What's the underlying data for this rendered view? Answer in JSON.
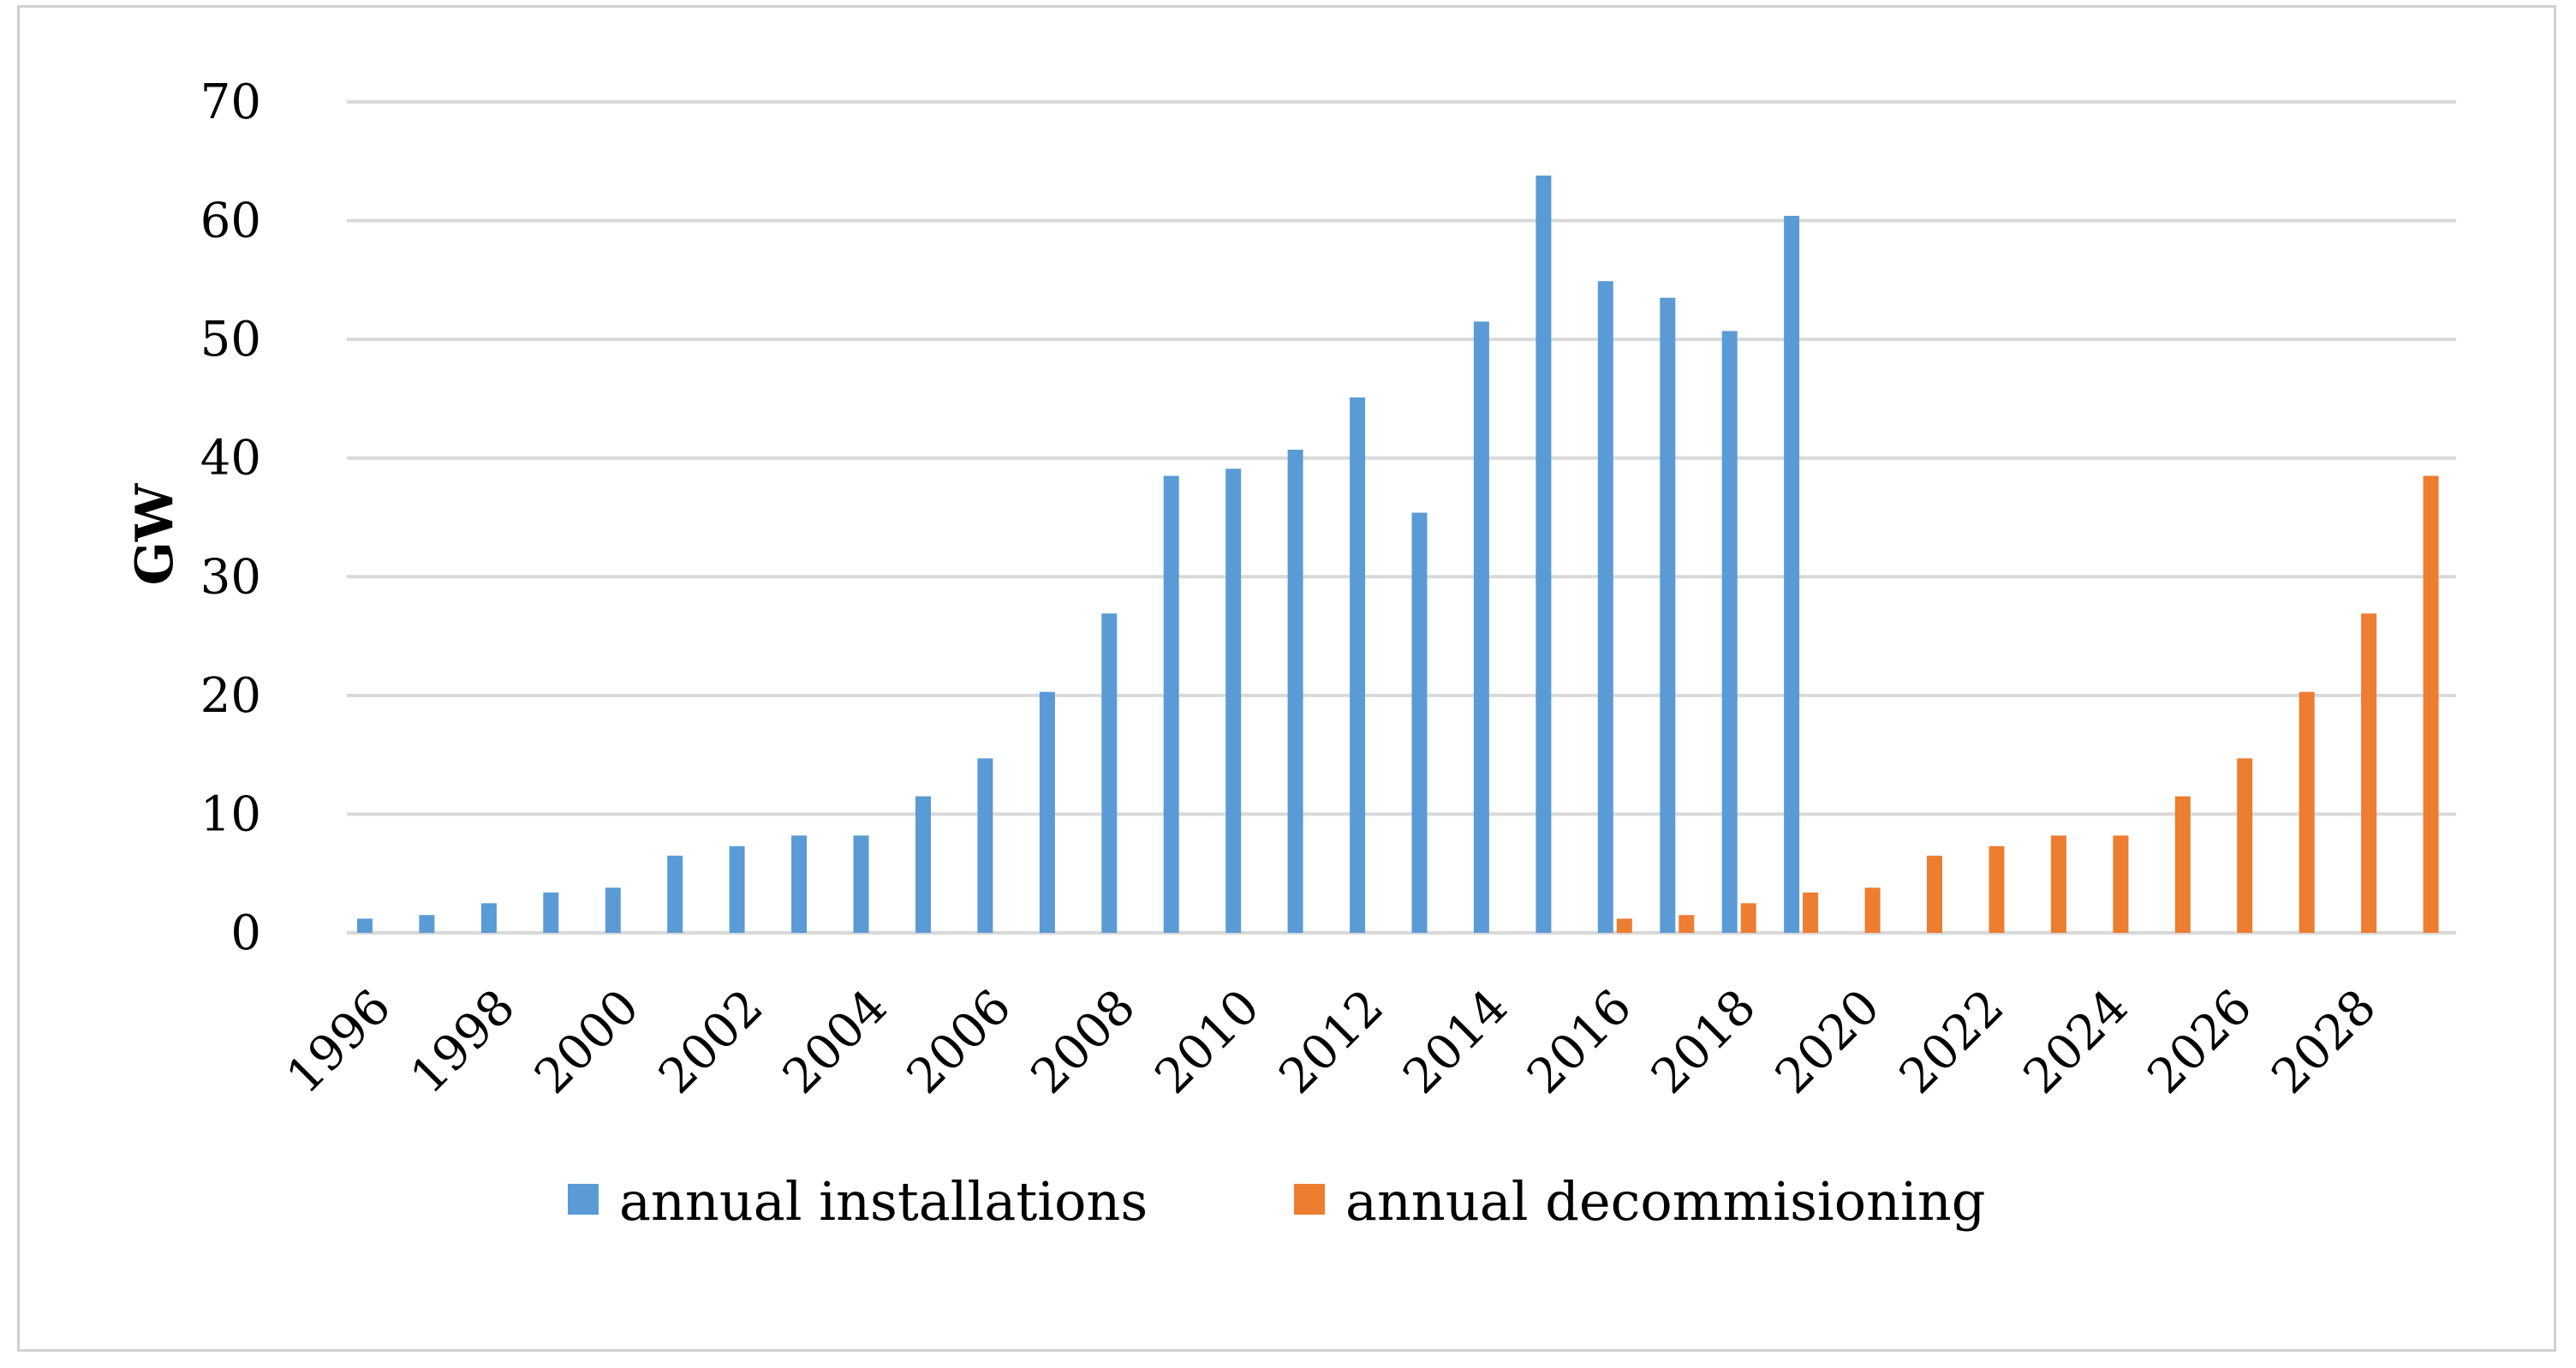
{
  "chart_data": {
    "type": "bar",
    "title": "",
    "xlabel": "",
    "ylabel": "GW",
    "ylim": [
      0,
      70
    ],
    "yticks": [
      0,
      10,
      20,
      30,
      40,
      50,
      60,
      70
    ],
    "grid": true,
    "legend_position": "bottom",
    "categories": [
      "1996",
      "1997",
      "1998",
      "1999",
      "2000",
      "2001",
      "2002",
      "2003",
      "2004",
      "2005",
      "2006",
      "2007",
      "2008",
      "2009",
      "2010",
      "2011",
      "2012",
      "2013",
      "2014",
      "2015",
      "2016",
      "2017",
      "2018",
      "2019",
      "2020",
      "2021",
      "2022",
      "2023",
      "2024",
      "2025",
      "2026",
      "2027",
      "2028",
      "2029"
    ],
    "tick_labels_shown": [
      "1996",
      "1998",
      "2000",
      "2002",
      "2004",
      "2006",
      "2008",
      "2010",
      "2012",
      "2014",
      "2016",
      "2018",
      "2020",
      "2022",
      "2024",
      "2026",
      "2028"
    ],
    "series": [
      {
        "name": "annual installations",
        "color": "#5b9bd5",
        "values": [
          1.2,
          1.5,
          2.5,
          3.4,
          3.8,
          6.5,
          7.3,
          8.2,
          8.2,
          11.5,
          14.7,
          20.3,
          26.9,
          38.5,
          39.1,
          40.7,
          45.1,
          35.4,
          51.5,
          63.8,
          54.9,
          53.5,
          50.7,
          60.4,
          0,
          0,
          0,
          0,
          0,
          0,
          0,
          0,
          0,
          0
        ]
      },
      {
        "name": "annual decommisioning",
        "color": "#ed7d31",
        "values": [
          0,
          0,
          0,
          0,
          0,
          0,
          0,
          0,
          0,
          0,
          0,
          0,
          0,
          0,
          0,
          0,
          0,
          0,
          0,
          0,
          1.2,
          1.5,
          2.5,
          3.4,
          3.8,
          6.5,
          7.3,
          8.2,
          8.2,
          11.5,
          14.7,
          20.3,
          26.9,
          38.5
        ]
      }
    ]
  }
}
